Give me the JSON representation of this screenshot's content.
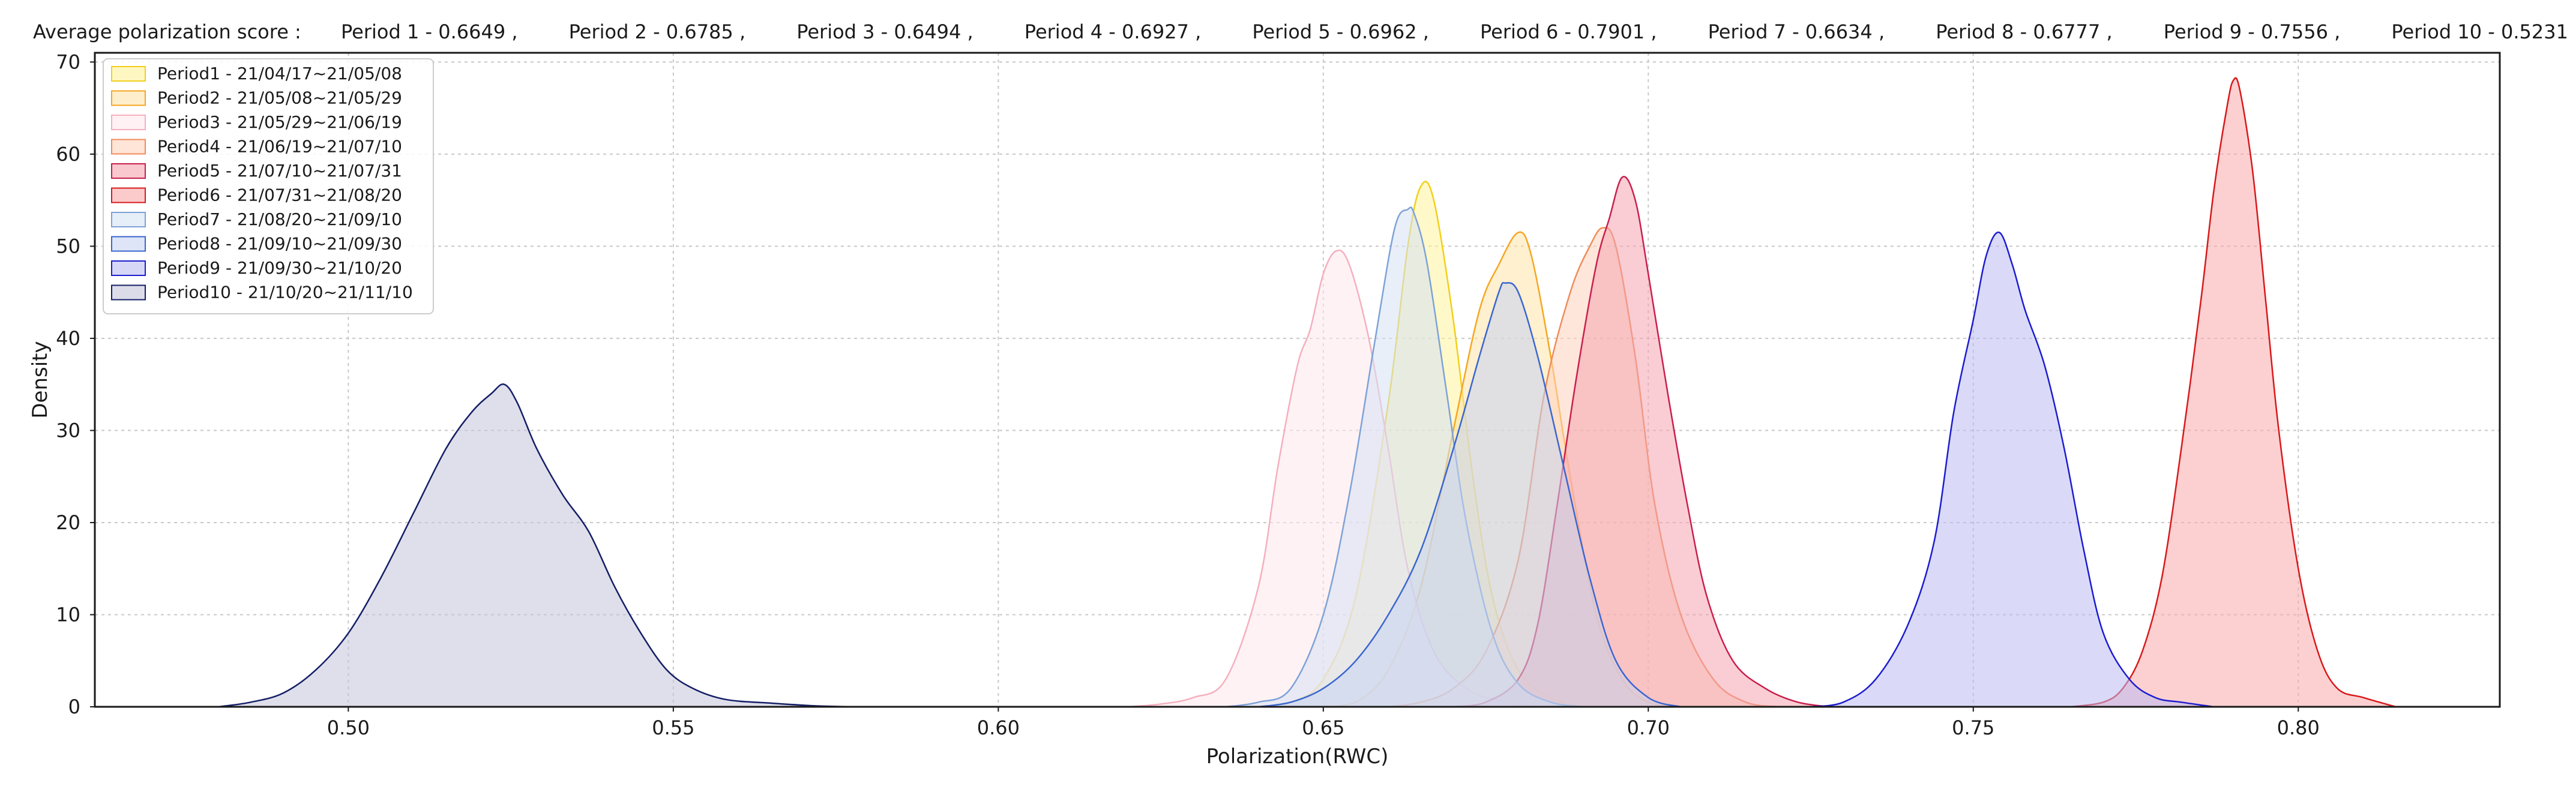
{
  "scores_header": {
    "label": "Average polarization score :",
    "items": [
      "Period 1 - 0.6649 ,",
      "Period 2 - 0.6785 ,",
      "Period 3 - 0.6494 ,",
      "Period 4 - 0.6927 ,",
      "Period 5 - 0.6962 ,",
      "Period 6 - 0.7901 ,",
      "Period 7 - 0.6634 ,",
      "Period 8 - 0.6777 ,",
      "Period 9 - 0.7556 ,",
      "Period 10 - 0.5231"
    ]
  },
  "chart_data": {
    "type": "area",
    "title": "",
    "xlabel": "Polarization(RWC)",
    "ylabel": "Density",
    "xlim": [
      0.461,
      0.831
    ],
    "ylim": [
      0,
      71
    ],
    "xticks": [
      0.5,
      0.55,
      0.6,
      0.65,
      0.7,
      0.75,
      0.8
    ],
    "xtick_labels": [
      "0.50",
      "0.55",
      "0.60",
      "0.65",
      "0.70",
      "0.75",
      "0.80"
    ],
    "yticks": [
      0,
      10,
      20,
      30,
      40,
      50,
      60,
      70
    ],
    "grid": true,
    "legend_position": "top-left",
    "series": [
      {
        "name": "Period1 - 21/04/17~21/05/08",
        "fill": "#FFF29A",
        "stroke": "#F2CF1A",
        "points": [
          [
            0.64,
            0
          ],
          [
            0.645,
            0.5
          ],
          [
            0.65,
            3
          ],
          [
            0.655,
            12
          ],
          [
            0.66,
            33
          ],
          [
            0.663,
            50
          ],
          [
            0.665,
            56.5
          ],
          [
            0.667,
            55
          ],
          [
            0.67,
            42
          ],
          [
            0.673,
            25
          ],
          [
            0.676,
            12
          ],
          [
            0.68,
            4
          ],
          [
            0.685,
            1
          ],
          [
            0.69,
            0
          ]
        ]
      },
      {
        "name": "Period2 - 21/05/08~21/05/29",
        "fill": "#FFE3A8",
        "stroke": "#F5A623",
        "points": [
          [
            0.65,
            0
          ],
          [
            0.655,
            0.5
          ],
          [
            0.66,
            4
          ],
          [
            0.665,
            13
          ],
          [
            0.67,
            30
          ],
          [
            0.674,
            43
          ],
          [
            0.677,
            48
          ],
          [
            0.68,
            51.5
          ],
          [
            0.682,
            49
          ],
          [
            0.685,
            38
          ],
          [
            0.688,
            25
          ],
          [
            0.692,
            10
          ],
          [
            0.696,
            3
          ],
          [
            0.7,
            0.5
          ],
          [
            0.705,
            0
          ]
        ]
      },
      {
        "name": "Period3 - 21/05/29~21/06/19",
        "fill": "#FFE8EC",
        "stroke": "#F4B0BE",
        "points": [
          [
            0.62,
            0
          ],
          [
            0.625,
            0.3
          ],
          [
            0.63,
            1
          ],
          [
            0.635,
            3
          ],
          [
            0.64,
            13
          ],
          [
            0.643,
            26
          ],
          [
            0.646,
            37
          ],
          [
            0.648,
            41
          ],
          [
            0.65,
            47
          ],
          [
            0.652,
            49.5
          ],
          [
            0.654,
            48
          ],
          [
            0.657,
            40
          ],
          [
            0.66,
            28
          ],
          [
            0.663,
            15
          ],
          [
            0.667,
            6
          ],
          [
            0.672,
            2
          ],
          [
            0.678,
            0.5
          ],
          [
            0.685,
            0
          ]
        ]
      },
      {
        "name": "Period4 - 21/06/19~21/07/10",
        "fill": "#FFD2BE",
        "stroke": "#F08C5A",
        "points": [
          [
            0.66,
            0
          ],
          [
            0.665,
            0.5
          ],
          [
            0.67,
            2
          ],
          [
            0.675,
            6
          ],
          [
            0.68,
            16
          ],
          [
            0.684,
            34
          ],
          [
            0.688,
            45
          ],
          [
            0.691,
            50
          ],
          [
            0.693,
            52
          ],
          [
            0.695,
            50
          ],
          [
            0.698,
            38
          ],
          [
            0.701,
            22
          ],
          [
            0.705,
            10
          ],
          [
            0.71,
            3
          ],
          [
            0.715,
            0.5
          ],
          [
            0.72,
            0
          ]
        ]
      },
      {
        "name": "Period5 - 21/07/10~21/07/31",
        "fill": "#F4A4AE",
        "stroke": "#C91F4D",
        "points": [
          [
            0.67,
            0
          ],
          [
            0.675,
            0.5
          ],
          [
            0.68,
            3
          ],
          [
            0.683,
            9
          ],
          [
            0.686,
            22
          ],
          [
            0.689,
            36
          ],
          [
            0.692,
            48
          ],
          [
            0.694,
            53
          ],
          [
            0.696,
            57.5
          ],
          [
            0.698,
            55
          ],
          [
            0.7,
            47
          ],
          [
            0.703,
            34
          ],
          [
            0.706,
            22
          ],
          [
            0.709,
            12
          ],
          [
            0.713,
            5
          ],
          [
            0.718,
            2
          ],
          [
            0.723,
            0.5
          ],
          [
            0.728,
            0
          ]
        ]
      },
      {
        "name": "Period6 - 21/07/31~21/08/20",
        "fill": "#F9A9A9",
        "stroke": "#D7191C",
        "points": [
          [
            0.765,
            0
          ],
          [
            0.77,
            0.5
          ],
          [
            0.773,
            2
          ],
          [
            0.776,
            6
          ],
          [
            0.779,
            14
          ],
          [
            0.782,
            28
          ],
          [
            0.785,
            44
          ],
          [
            0.787,
            56
          ],
          [
            0.789,
            65
          ],
          [
            0.79,
            68
          ],
          [
            0.791,
            67
          ],
          [
            0.793,
            58
          ],
          [
            0.795,
            44
          ],
          [
            0.797,
            30
          ],
          [
            0.8,
            15
          ],
          [
            0.803,
            6
          ],
          [
            0.806,
            2
          ],
          [
            0.81,
            1
          ],
          [
            0.815,
            0
          ]
        ]
      },
      {
        "name": "Period7 - 21/08/20~21/09/10",
        "fill": "#D6E2F4",
        "stroke": "#7EA2D6",
        "points": [
          [
            0.635,
            0
          ],
          [
            0.64,
            0.5
          ],
          [
            0.645,
            2
          ],
          [
            0.65,
            10
          ],
          [
            0.654,
            23
          ],
          [
            0.658,
            40
          ],
          [
            0.661,
            52
          ],
          [
            0.663,
            54
          ],
          [
            0.664,
            53.5
          ],
          [
            0.666,
            48
          ],
          [
            0.669,
            34
          ],
          [
            0.672,
            20
          ],
          [
            0.676,
            8
          ],
          [
            0.68,
            2.5
          ],
          [
            0.685,
            0.5
          ],
          [
            0.69,
            0
          ]
        ]
      },
      {
        "name": "Period8 - 21/09/10~21/09/30",
        "fill": "#C6D4F2",
        "stroke": "#3A66D0",
        "points": [
          [
            0.64,
            0
          ],
          [
            0.645,
            0.5
          ],
          [
            0.65,
            2
          ],
          [
            0.655,
            5
          ],
          [
            0.66,
            10
          ],
          [
            0.665,
            17
          ],
          [
            0.67,
            28
          ],
          [
            0.674,
            38
          ],
          [
            0.677,
            45
          ],
          [
            0.678,
            46
          ],
          [
            0.68,
            45
          ],
          [
            0.683,
            38
          ],
          [
            0.687,
            26
          ],
          [
            0.691,
            14
          ],
          [
            0.695,
            5
          ],
          [
            0.7,
            1
          ],
          [
            0.705,
            0
          ]
        ]
      },
      {
        "name": "Period9 - 21/09/30~21/10/20",
        "fill": "#BBBBF2",
        "stroke": "#1C1CCF",
        "points": [
          [
            0.725,
            0
          ],
          [
            0.73,
            0.5
          ],
          [
            0.735,
            3
          ],
          [
            0.74,
            9
          ],
          [
            0.744,
            18
          ],
          [
            0.747,
            32
          ],
          [
            0.75,
            42
          ],
          [
            0.752,
            49
          ],
          [
            0.754,
            51.5
          ],
          [
            0.756,
            48
          ],
          [
            0.758,
            43
          ],
          [
            0.761,
            37
          ],
          [
            0.764,
            28
          ],
          [
            0.767,
            17
          ],
          [
            0.77,
            8
          ],
          [
            0.774,
            3
          ],
          [
            0.778,
            1
          ],
          [
            0.782,
            0.5
          ],
          [
            0.787,
            0
          ]
        ]
      },
      {
        "name": "Period10 - 21/10/20~21/11/10",
        "fill": "#C4C4DA",
        "stroke": "#141E66",
        "points": [
          [
            0.48,
            0
          ],
          [
            0.485,
            0.5
          ],
          [
            0.49,
            1.5
          ],
          [
            0.495,
            4
          ],
          [
            0.5,
            8
          ],
          [
            0.505,
            14
          ],
          [
            0.51,
            21
          ],
          [
            0.515,
            28
          ],
          [
            0.519,
            32
          ],
          [
            0.522,
            34
          ],
          [
            0.524,
            35
          ],
          [
            0.526,
            33
          ],
          [
            0.529,
            28
          ],
          [
            0.533,
            23
          ],
          [
            0.537,
            19
          ],
          [
            0.541,
            13
          ],
          [
            0.545,
            8
          ],
          [
            0.549,
            4
          ],
          [
            0.553,
            2
          ],
          [
            0.558,
            0.8
          ],
          [
            0.565,
            0.4
          ],
          [
            0.572,
            0.1
          ],
          [
            0.578,
            0
          ]
        ]
      }
    ]
  }
}
